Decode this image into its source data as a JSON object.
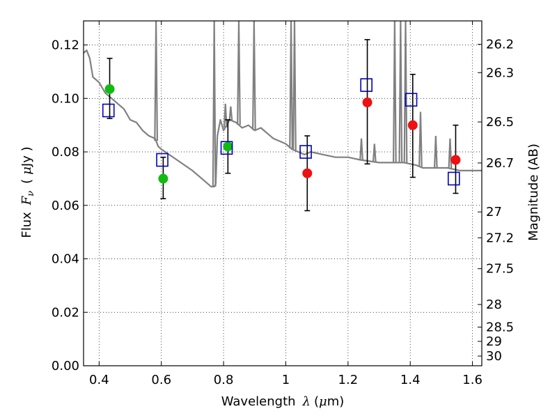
{
  "chart_data": {
    "type": "scatter",
    "title": "",
    "xlabel": {
      "text": "Wavelength",
      "symbol": "λ",
      "units_open": "(",
      "units_mu": "μ",
      "units_rest": "m)"
    },
    "ylabel": {
      "text": "Flux",
      "symbol": "F",
      "symbol_sub": "ν",
      "units_open": "(",
      "units_mu": "μ",
      "units_rest": "Jy )"
    },
    "y2label": "Magnitude (AB)",
    "xlim": [
      0.35,
      1.63
    ],
    "ylim": [
      0.0,
      0.129
    ],
    "grid": true,
    "x_ticks": [
      {
        "value": 0.4,
        "label": "0.4"
      },
      {
        "value": 0.6,
        "label": "0.6"
      },
      {
        "value": 0.8,
        "label": "0.8"
      },
      {
        "value": 1.0,
        "label": "1"
      },
      {
        "value": 1.2,
        "label": "1.2"
      },
      {
        "value": 1.4,
        "label": "1.4"
      },
      {
        "value": 1.6,
        "label": "1.6"
      }
    ],
    "y_ticks": [
      {
        "value": 0.0,
        "label": "0.00"
      },
      {
        "value": 0.02,
        "label": "0.02"
      },
      {
        "value": 0.04,
        "label": "0.04"
      },
      {
        "value": 0.06,
        "label": "0.06"
      },
      {
        "value": 0.08,
        "label": "0.08"
      },
      {
        "value": 0.1,
        "label": "0.10"
      },
      {
        "value": 0.12,
        "label": "0.12"
      }
    ],
    "mag_ticks": [
      {
        "value": 26.2,
        "label": "26.2"
      },
      {
        "value": 26.3,
        "label": "26.3"
      },
      {
        "value": 26.5,
        "label": "26.5"
      },
      {
        "value": 26.7,
        "label": "26.7"
      },
      {
        "value": 27.0,
        "label": "27"
      },
      {
        "value": 27.2,
        "label": "27.2"
      },
      {
        "value": 27.5,
        "label": "27.5"
      },
      {
        "value": 28.0,
        "label": "28"
      },
      {
        "value": 28.5,
        "label": "28.5"
      },
      {
        "value": 29.0,
        "label": "29"
      },
      {
        "value": 30.0,
        "label": "30"
      }
    ],
    "colors": {
      "model": "#808080",
      "green": "#11bb11",
      "red": "#ee1111",
      "squares": "#0000bb",
      "errorbar": "#000000"
    },
    "series": [
      {
        "kind": "model-spectrum",
        "x": [
          0.35,
          0.36,
          0.37,
          0.38,
          0.39,
          0.4,
          0.42,
          0.45,
          0.48,
          0.5,
          0.52,
          0.54,
          0.56,
          0.58,
          0.59,
          0.6,
          0.65,
          0.7,
          0.74,
          0.76,
          0.77,
          0.775,
          0.78,
          0.79,
          0.8,
          0.82,
          0.84,
          0.86,
          0.88,
          0.9,
          0.92,
          0.94,
          0.96,
          1.0,
          1.02,
          1.04,
          1.06,
          1.08,
          1.12,
          1.16,
          1.2,
          1.24,
          1.3,
          1.34,
          1.38,
          1.42,
          1.44,
          1.48,
          1.52,
          1.56,
          1.63
        ],
        "y": [
          0.117,
          0.118,
          0.115,
          0.108,
          0.107,
          0.106,
          0.102,
          0.099,
          0.096,
          0.092,
          0.091,
          0.088,
          0.086,
          0.085,
          0.082,
          0.081,
          0.077,
          0.073,
          0.069,
          0.067,
          0.067,
          0.068,
          0.086,
          0.092,
          0.088,
          0.092,
          0.091,
          0.089,
          0.09,
          0.088,
          0.089,
          0.087,
          0.085,
          0.083,
          0.081,
          0.08,
          0.079,
          0.08,
          0.079,
          0.078,
          0.078,
          0.077,
          0.076,
          0.076,
          0.076,
          0.075,
          0.074,
          0.074,
          0.074,
          0.073,
          0.073
        ]
      },
      {
        "kind": "emission-spikes",
        "x": [
          0.583,
          0.77,
          0.806,
          0.823,
          0.849,
          0.898,
          1.017,
          1.028,
          1.243,
          1.285,
          1.35,
          1.369,
          1.385,
          1.433,
          1.482,
          1.528
        ],
        "y": [
          0.129,
          0.129,
          0.098,
          0.097,
          0.129,
          0.129,
          0.129,
          0.129,
          0.085,
          0.083,
          0.129,
          0.129,
          0.129,
          0.095,
          0.086,
          0.085
        ]
      },
      {
        "kind": "observed",
        "color": "green",
        "x": [
          0.434,
          0.606,
          0.814
        ],
        "y": [
          0.1035,
          0.07,
          0.082
        ]
      },
      {
        "kind": "observed",
        "color": "red",
        "x": [
          1.069,
          1.262,
          1.408,
          1.546
        ],
        "y": [
          0.072,
          0.0985,
          0.09,
          0.077
        ]
      },
      {
        "kind": "model-photometry",
        "x": [
          0.43,
          0.603,
          0.81,
          1.064,
          1.259,
          1.403,
          1.54
        ],
        "y": [
          0.0955,
          0.077,
          0.0815,
          0.08,
          0.105,
          0.0995,
          0.07
        ]
      },
      {
        "kind": "errorbars",
        "x": [
          0.434,
          0.606,
          0.814,
          1.069,
          1.262,
          1.408,
          1.546
        ],
        "low": [
          0.0925,
          0.0625,
          0.072,
          0.058,
          0.0755,
          0.0705,
          0.0645
        ],
        "high": [
          0.115,
          0.078,
          0.092,
          0.086,
          0.122,
          0.109,
          0.09
        ]
      }
    ]
  }
}
